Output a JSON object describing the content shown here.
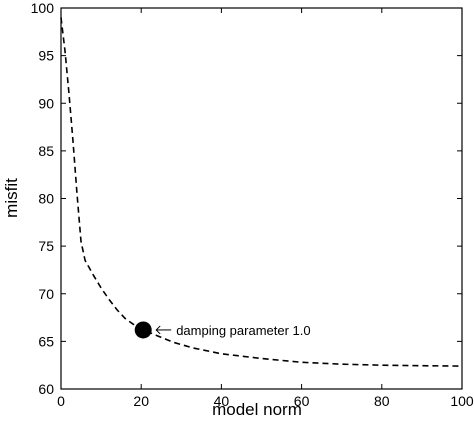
{
  "chart_data": {
    "type": "line",
    "title": "",
    "xlabel": "model norm",
    "ylabel": "misfit",
    "xlim": [
      0,
      100
    ],
    "ylim": [
      60,
      100
    ],
    "grid": false,
    "legend": "none",
    "xticks": [
      0,
      20,
      40,
      60,
      80,
      100
    ],
    "yticks": [
      60,
      65,
      70,
      75,
      80,
      85,
      90,
      95,
      100
    ],
    "series": [
      {
        "line_style": "dashed",
        "color": "#000000",
        "x": [
          0,
          1,
          2,
          3,
          4,
          5,
          6,
          8,
          10,
          12,
          14,
          16,
          18,
          20.5,
          24,
          28,
          33,
          40,
          50,
          60,
          70,
          80,
          90,
          100
        ],
        "y": [
          99,
          95.5,
          91,
          86,
          80.5,
          75.5,
          73.5,
          72,
          70.6,
          69.4,
          68.3,
          67.4,
          66.8,
          66.2,
          65.6,
          64.9,
          64.3,
          63.7,
          63.2,
          62.8,
          62.6,
          62.5,
          62.45,
          62.4
        ]
      }
    ],
    "highlight_point": {
      "x": 20.5,
      "y": 66.2,
      "color": "#000000"
    },
    "annotation": {
      "text": "damping parameter 1.0",
      "arrow": "left"
    }
  }
}
